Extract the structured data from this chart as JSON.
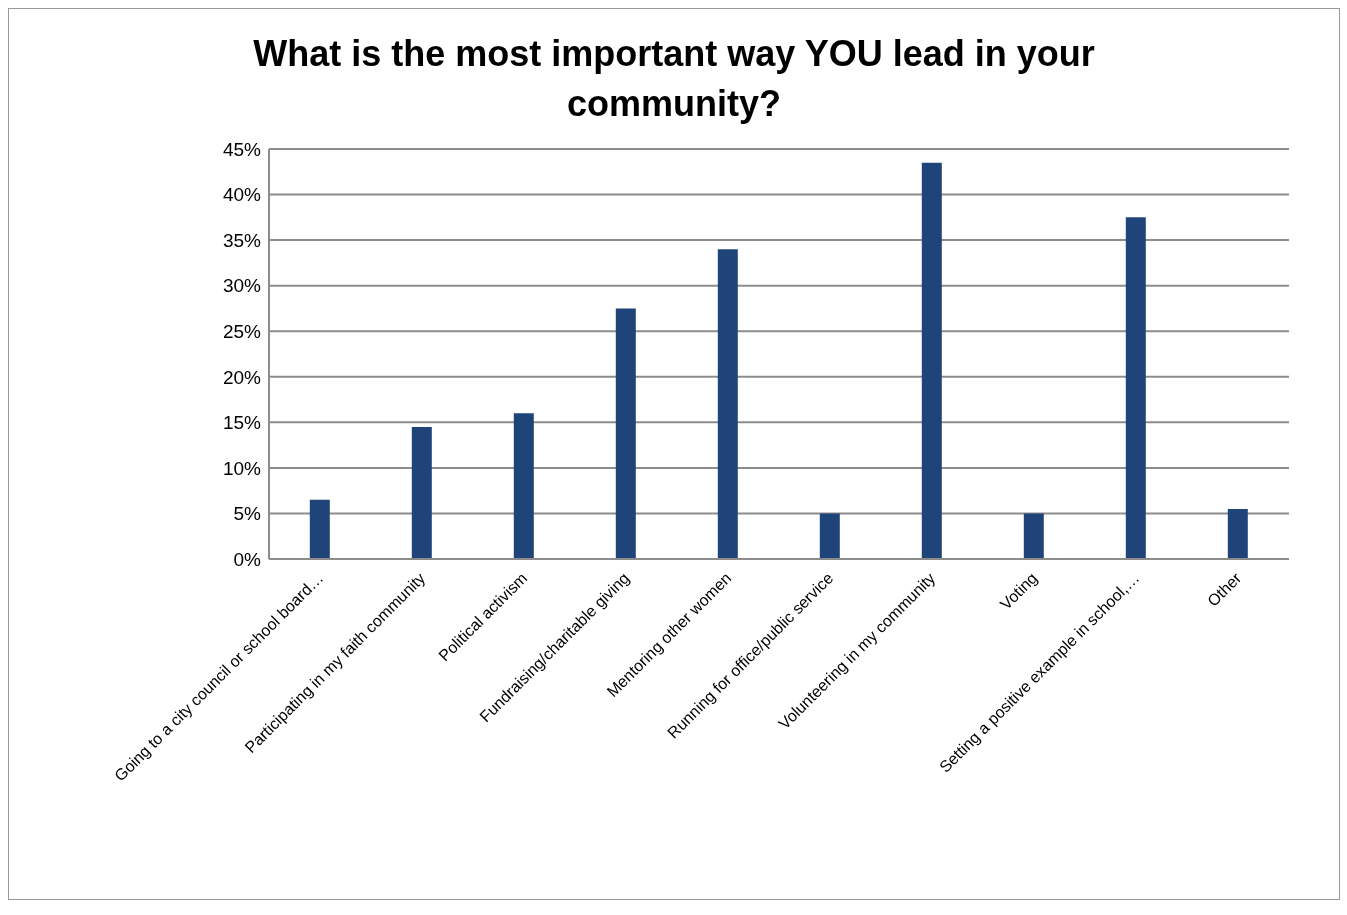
{
  "chart_data": {
    "type": "bar",
    "title": "What is the most important way YOU lead in your community?",
    "categories": [
      "Going to a city council or school board…",
      "Participating in my faith community",
      "Political activism",
      "Fundraising/charitable giving",
      "Mentoring other women",
      "Running for office/public service",
      "Volunteering in my community",
      "Voting",
      "Setting a positive example in school,…",
      "Other"
    ],
    "values": [
      6.5,
      14.5,
      16,
      27.5,
      34,
      5,
      43.5,
      5,
      37.5,
      5.5
    ],
    "color": "#1f4479",
    "ylim": [
      0,
      45
    ],
    "yticks": [
      {
        "value": 0,
        "label": "0%"
      },
      {
        "value": 5,
        "label": "5%"
      },
      {
        "value": 10,
        "label": "10%"
      },
      {
        "value": 15,
        "label": "15%"
      },
      {
        "value": 20,
        "label": "20%"
      },
      {
        "value": 25,
        "label": "25%"
      },
      {
        "value": 30,
        "label": "30%"
      },
      {
        "value": 35,
        "label": "35%"
      },
      {
        "value": 40,
        "label": "40%"
      },
      {
        "value": 45,
        "label": "45%"
      }
    ],
    "grid": "y",
    "legend": false
  }
}
